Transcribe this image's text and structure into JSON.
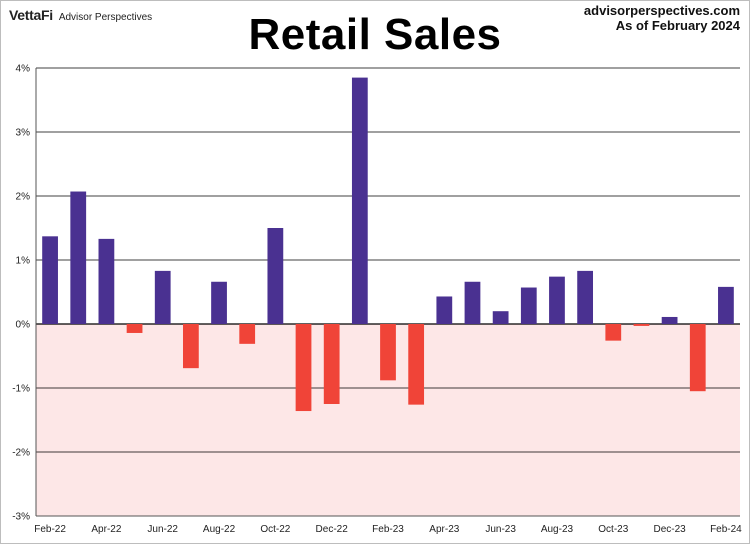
{
  "header": {
    "brand": "VettaFi",
    "brand_sub": "Advisor Perspectives",
    "site": "advisorperspectives.com",
    "as_of": "As of February 2024"
  },
  "colors": {
    "positive": "#4a3191",
    "negative": "#f04438",
    "negative_region": "#fde7e7",
    "grid": "#000000"
  },
  "chart_data": {
    "type": "bar",
    "title": "Retail Sales",
    "xlabel": "",
    "ylabel": "",
    "ylim": [
      -3,
      4
    ],
    "yticks": [
      4,
      3,
      2,
      1,
      0,
      -1,
      -2,
      -3
    ],
    "ytick_labels": [
      "4%",
      "3%",
      "2%",
      "1%",
      "0%",
      "-1%",
      "-2%",
      "-3%"
    ],
    "grid": true,
    "categories": [
      "Feb-22",
      "Mar-22",
      "Apr-22",
      "May-22",
      "Jun-22",
      "Jul-22",
      "Aug-22",
      "Sep-22",
      "Oct-22",
      "Nov-22",
      "Dec-22",
      "Jan-23",
      "Feb-23",
      "Mar-23",
      "Apr-23",
      "May-23",
      "Jun-23",
      "Jul-23",
      "Aug-23",
      "Sep-23",
      "Oct-23",
      "Nov-23",
      "Dec-23",
      "Jan-24",
      "Feb-24"
    ],
    "xtick_labels": [
      "Feb-22",
      "Apr-22",
      "Jun-22",
      "Aug-22",
      "Oct-22",
      "Dec-22",
      "Feb-23",
      "Apr-23",
      "Jun-23",
      "Aug-23",
      "Oct-23",
      "Dec-23",
      "Feb-24"
    ],
    "values": [
      1.37,
      2.07,
      1.33,
      -0.14,
      0.83,
      -0.69,
      0.66,
      -0.31,
      1.5,
      -1.36,
      -1.25,
      3.85,
      -0.88,
      -1.26,
      0.43,
      0.66,
      0.2,
      0.57,
      0.74,
      0.83,
      -0.26,
      -0.03,
      0.11,
      -1.05,
      0.58
    ]
  }
}
